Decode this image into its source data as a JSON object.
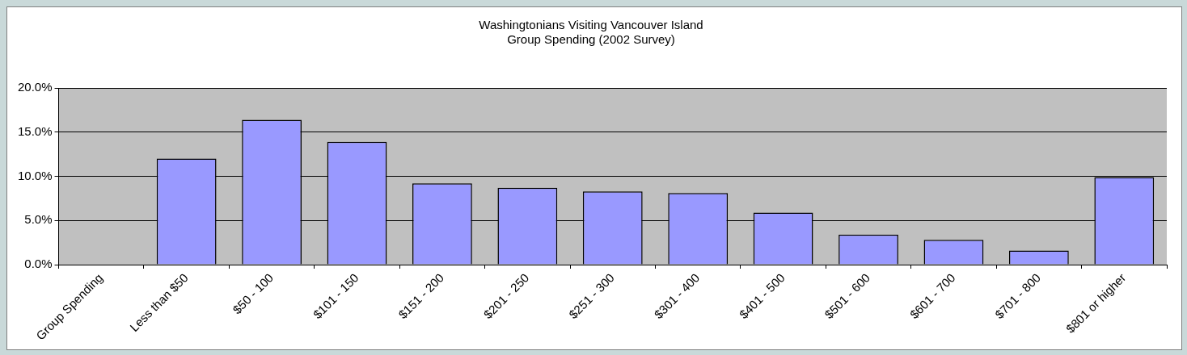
{
  "chart_data": {
    "type": "bar",
    "title": "Washingtonians Visiting Vancouver Island\nGroup Spending (2002 Survey)",
    "categories": [
      "Group Spending",
      "Less than $50",
      "$50 - 100",
      "$101 - 150",
      "$151 - 200",
      "$201 - 250",
      "$251 - 300",
      "$301 - 400",
      "$401 - 500",
      "$501 - 600",
      "$601 - 700",
      "$701 - 800",
      "$801 or higher"
    ],
    "values": [
      null,
      12.0,
      16.4,
      13.9,
      9.2,
      8.7,
      8.3,
      8.1,
      5.9,
      3.4,
      2.8,
      1.6,
      9.9
    ],
    "color": "#9999ff",
    "ylim": [
      0,
      20
    ],
    "yticks": [
      {
        "value": 0,
        "label": "0.0%"
      },
      {
        "value": 5,
        "label": "5.0%"
      },
      {
        "value": 10,
        "label": "10.0%"
      },
      {
        "value": 15,
        "label": "15.0%"
      },
      {
        "value": 20,
        "label": "20.0%"
      }
    ],
    "grid": "y",
    "legend": false
  }
}
